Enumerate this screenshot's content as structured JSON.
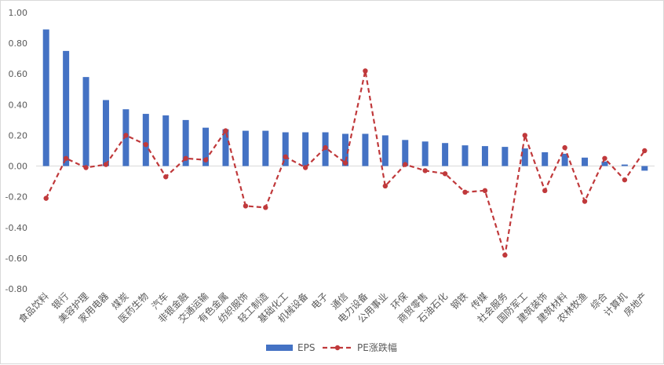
{
  "chart_data": {
    "type": "bar",
    "categories": [
      "食品饮料",
      "银行",
      "美容护理",
      "家用电器",
      "煤炭",
      "医药生物",
      "汽车",
      "非银金融",
      "交通运输",
      "有色金属",
      "纺织服饰",
      "轻工制造",
      "基础化工",
      "机械设备",
      "电子",
      "通信",
      "电力设备",
      "公用事业",
      "环保",
      "商贸零售",
      "石油石化",
      "钢铁",
      "传媒",
      "社会服务",
      "国防军工",
      "建筑装饰",
      "建筑材料",
      "农林牧渔",
      "综合",
      "计算机",
      "房地产"
    ],
    "series": [
      {
        "name": "EPS",
        "type": "bar",
        "color": "#4472c4",
        "values": [
          0.89,
          0.75,
          0.58,
          0.43,
          0.37,
          0.34,
          0.33,
          0.3,
          0.25,
          0.24,
          0.23,
          0.23,
          0.22,
          0.22,
          0.22,
          0.21,
          0.21,
          0.2,
          0.17,
          0.16,
          0.15,
          0.135,
          0.13,
          0.125,
          0.115,
          0.09,
          0.08,
          0.055,
          0.03,
          0.01,
          -0.03
        ]
      },
      {
        "name": "PE涨跌幅",
        "type": "line",
        "color": "#c0393b",
        "dashed": true,
        "values": [
          -0.21,
          0.05,
          -0.01,
          0.01,
          0.2,
          0.14,
          -0.07,
          0.05,
          0.04,
          0.23,
          -0.26,
          -0.27,
          0.06,
          -0.01,
          0.12,
          0.02,
          0.62,
          -0.13,
          0.01,
          -0.03,
          -0.05,
          -0.17,
          -0.16,
          -0.58,
          0.2,
          -0.16,
          0.12,
          -0.23,
          0.05,
          -0.09,
          0.1
        ]
      }
    ],
    "yticks": [
      "1.00",
      "0.80",
      "0.60",
      "0.40",
      "0.20",
      "0.00",
      "-0.20",
      "-0.40",
      "-0.60",
      "-0.80"
    ],
    "ylim": [
      -0.8,
      1.0
    ],
    "ystep": 0.2,
    "grid": false,
    "legend_position": "bottom",
    "title": "",
    "xlabel": "",
    "ylabel": ""
  }
}
